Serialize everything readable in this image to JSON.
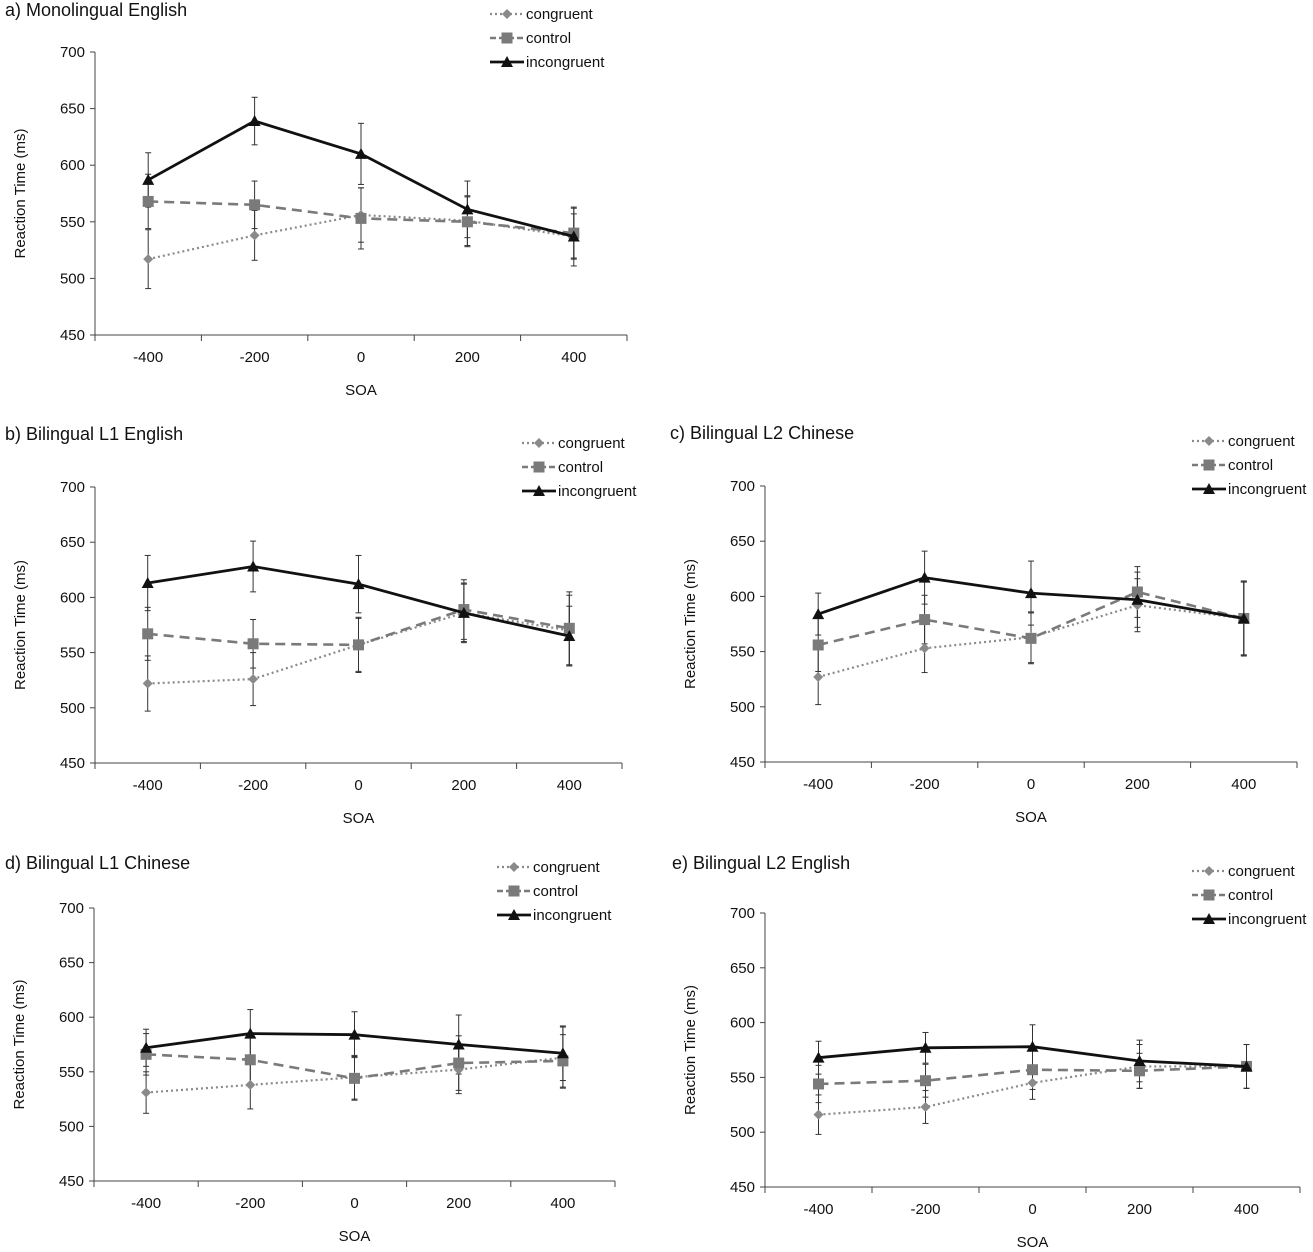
{
  "chart_data": [
    {
      "type": "line",
      "title": "a) Monolingual English",
      "xlabel": "SOA",
      "ylabel": "Reaction Time (ms)",
      "ylim": [
        450,
        700
      ],
      "yticks": [
        450,
        500,
        550,
        600,
        650,
        700
      ],
      "categories": [
        "-400",
        "-200",
        "0",
        "200",
        "400"
      ],
      "legend": "top-right",
      "grid": false,
      "series": [
        {
          "name": "congruent",
          "values": [
            517,
            538,
            556,
            551,
            537
          ],
          "error": [
            26,
            22,
            24,
            22,
            20
          ]
        },
        {
          "name": "control",
          "values": [
            568,
            565,
            553,
            550,
            540
          ],
          "error": [
            24,
            21,
            27,
            22,
            22
          ]
        },
        {
          "name": "incongruent",
          "values": [
            587,
            639,
            610,
            561,
            537
          ],
          "error": [
            24,
            21,
            27,
            25,
            26
          ]
        }
      ]
    },
    {
      "type": "line",
      "title": "b) Bilingual L1 English",
      "xlabel": "SOA",
      "ylabel": "Reaction Time (ms)",
      "ylim": [
        450,
        700
      ],
      "yticks": [
        450,
        500,
        550,
        600,
        650,
        700
      ],
      "categories": [
        "-400",
        "-200",
        "0",
        "200",
        "400"
      ],
      "legend": "top-right",
      "grid": false,
      "series": [
        {
          "name": "congruent",
          "values": [
            522,
            526,
            557,
            586,
            570
          ],
          "error": [
            25,
            24,
            24,
            27,
            32
          ]
        },
        {
          "name": "control",
          "values": [
            567,
            558,
            557,
            589,
            572
          ],
          "error": [
            24,
            22,
            25,
            27,
            33
          ]
        },
        {
          "name": "incongruent",
          "values": [
            613,
            628,
            612,
            586,
            565
          ],
          "error": [
            25,
            23,
            26,
            26,
            27
          ]
        }
      ]
    },
    {
      "type": "line",
      "title": "c) Bilingual L2 Chinese",
      "xlabel": "SOA",
      "ylabel": "Reaction Time (ms)",
      "ylim": [
        450,
        700
      ],
      "yticks": [
        450,
        500,
        550,
        600,
        650,
        700
      ],
      "categories": [
        "-400",
        "-200",
        "0",
        "200",
        "400"
      ],
      "legend": "top-right",
      "grid": false,
      "series": [
        {
          "name": "congruent",
          "values": [
            527,
            553,
            563,
            592,
            580
          ],
          "error": [
            25,
            22,
            23,
            24,
            33
          ]
        },
        {
          "name": "control",
          "values": [
            556,
            579,
            562,
            604,
            580
          ],
          "error": [
            24,
            22,
            23,
            23,
            34
          ]
        },
        {
          "name": "incongruent",
          "values": [
            584,
            617,
            603,
            597,
            580
          ],
          "error": [
            19,
            24,
            29,
            25,
            33
          ]
        }
      ]
    },
    {
      "type": "line",
      "title": "d) Bilingual L1 Chinese",
      "xlabel": "SOA",
      "ylabel": "Reaction Time (ms)",
      "ylim": [
        450,
        700
      ],
      "yticks": [
        450,
        500,
        550,
        600,
        650,
        700
      ],
      "categories": [
        "-400",
        "-200",
        "0",
        "200",
        "400"
      ],
      "legend": "top-right",
      "grid": false,
      "series": [
        {
          "name": "congruent",
          "values": [
            531,
            538,
            545,
            552,
            563
          ],
          "error": [
            19,
            22,
            20,
            22,
            28
          ]
        },
        {
          "name": "control",
          "values": [
            566,
            561,
            544,
            558,
            560
          ],
          "error": [
            19,
            22,
            20,
            25,
            24
          ]
        },
        {
          "name": "incongruent",
          "values": [
            572,
            585,
            584,
            575,
            567
          ],
          "error": [
            17,
            22,
            21,
            27,
            25
          ]
        }
      ]
    },
    {
      "type": "line",
      "title": "e) Bilingual L2 English",
      "xlabel": "SOA",
      "ylabel": "Reaction Time (ms)",
      "ylim": [
        450,
        700
      ],
      "yticks": [
        450,
        500,
        550,
        600,
        650,
        700
      ],
      "categories": [
        "-400",
        "-200",
        "0",
        "200",
        "400"
      ],
      "legend": "top-right",
      "grid": false,
      "series": [
        {
          "name": "congruent",
          "values": [
            516,
            523,
            545,
            560,
            560
          ],
          "error": [
            18,
            15,
            15,
            20,
            20
          ]
        },
        {
          "name": "control",
          "values": [
            544,
            547,
            557,
            556,
            560
          ],
          "error": [
            17,
            15,
            18,
            16,
            20
          ]
        },
        {
          "name": "incongruent",
          "values": [
            568,
            577,
            578,
            565,
            560
          ],
          "error": [
            15,
            14,
            20,
            19,
            20
          ]
        }
      ]
    }
  ],
  "colors": {
    "congruent": "#8a8a8a",
    "control": "#7a7a7a",
    "incongruent": "#111111"
  }
}
